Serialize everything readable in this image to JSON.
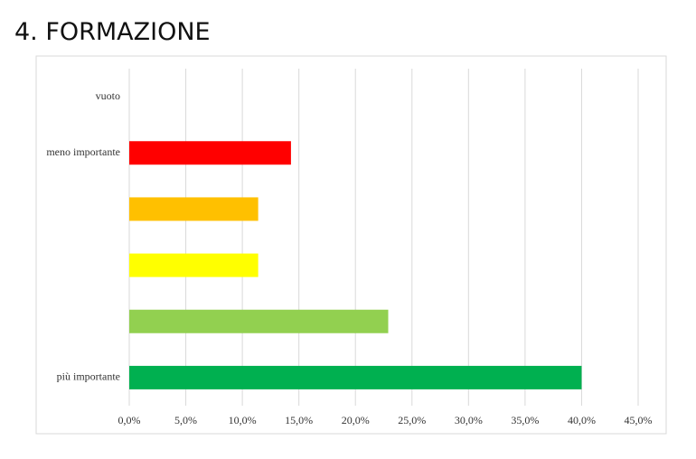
{
  "title": "4. FORMAZIONE",
  "chart_data": {
    "type": "barh",
    "categories": [
      "vuoto",
      "meno importante",
      null,
      null,
      null,
      "più importante"
    ],
    "values": [
      0,
      14.3,
      11.4,
      11.4,
      22.9,
      40.0
    ],
    "colors": [
      "#ff0000",
      "#ff0000",
      "#ffc000",
      "#ffff00",
      "#92d050",
      "#00b050"
    ],
    "xlim": [
      0,
      45
    ],
    "xticks": [
      {
        "value": 0,
        "label": "0,0%"
      },
      {
        "value": 5,
        "label": "5,0%"
      },
      {
        "value": 10,
        "label": "10,0%"
      },
      {
        "value": 15,
        "label": "15,0%"
      },
      {
        "value": 20,
        "label": "20,0%"
      },
      {
        "value": 25,
        "label": "25,0%"
      },
      {
        "value": 30,
        "label": "30,0%"
      },
      {
        "value": 35,
        "label": "35,0%"
      },
      {
        "value": 40,
        "label": "40,0%"
      },
      {
        "value": 45,
        "label": "45,0%"
      }
    ],
    "grid": true
  }
}
